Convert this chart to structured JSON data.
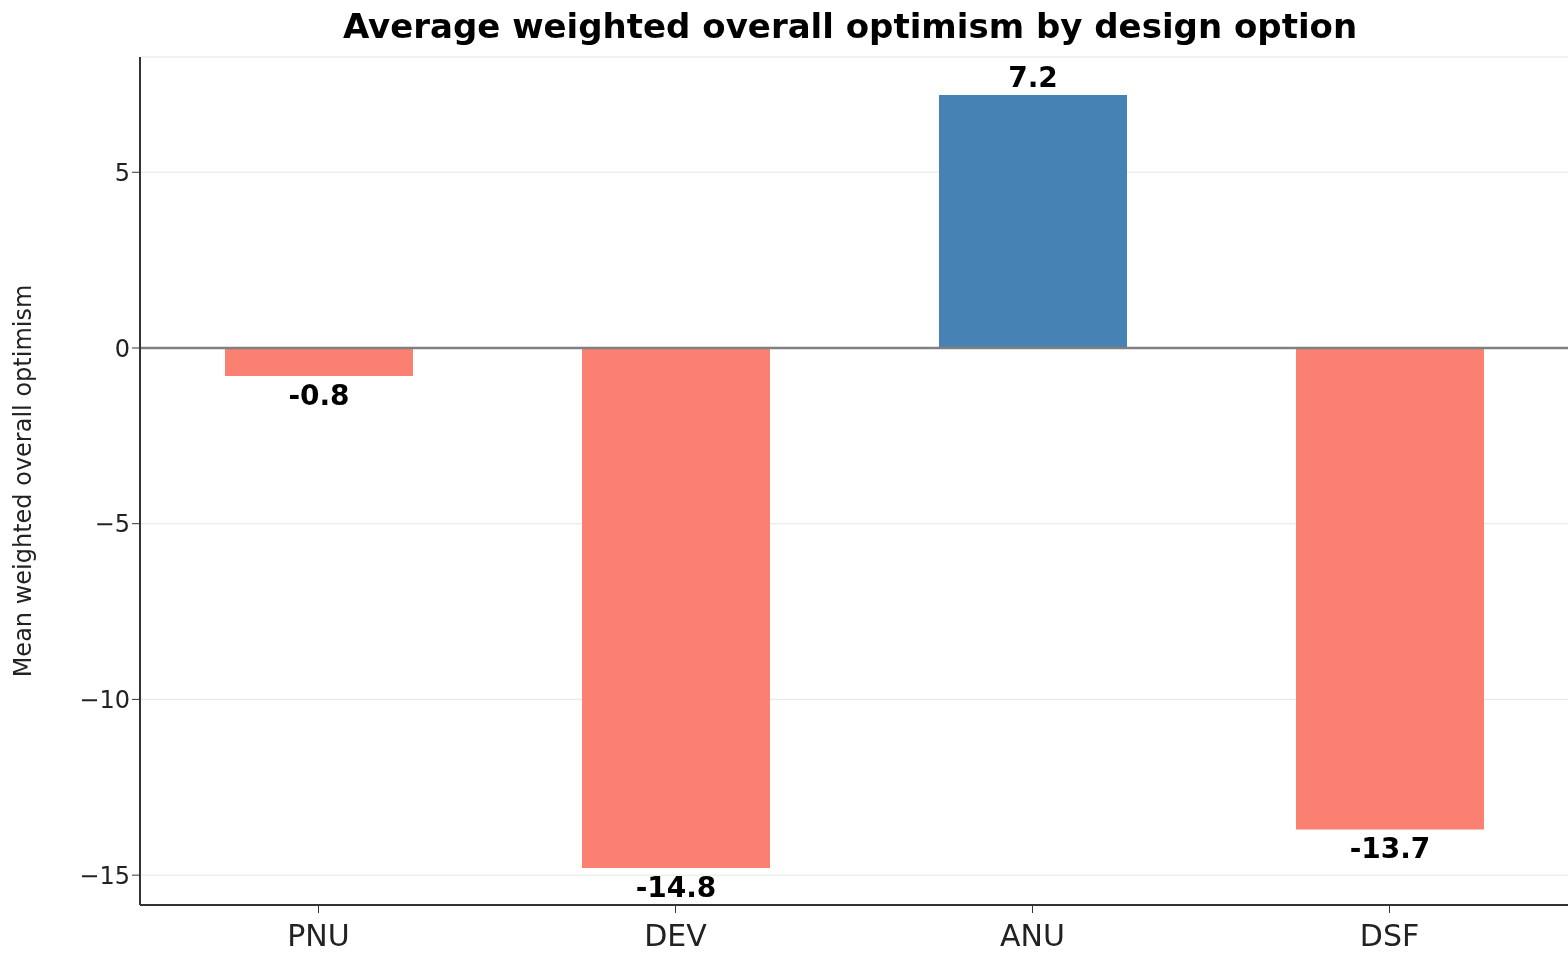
{
  "chart_data": {
    "type": "bar",
    "title": "Average weighted overall optimism by design option",
    "ylabel": "Mean weighted overall optimism",
    "categories": [
      "PNU",
      "DEV",
      "ANU",
      "DSF"
    ],
    "values": [
      -0.8,
      -14.8,
      7.2,
      -13.7
    ],
    "colors": [
      "#fa8072",
      "#fa8072",
      "#4682b4",
      "#fa8072"
    ],
    "ylim": [
      -15.85,
      8.28
    ],
    "yticks": [
      {
        "value": -15,
        "label": "−15"
      },
      {
        "value": -10,
        "label": "−10"
      },
      {
        "value": -5,
        "label": "−5"
      },
      0,
      5
    ],
    "ref_lines": [
      {
        "axis": "y",
        "value": 0,
        "color": "#808080"
      }
    ],
    "grid": "y",
    "data_labels": true
  }
}
